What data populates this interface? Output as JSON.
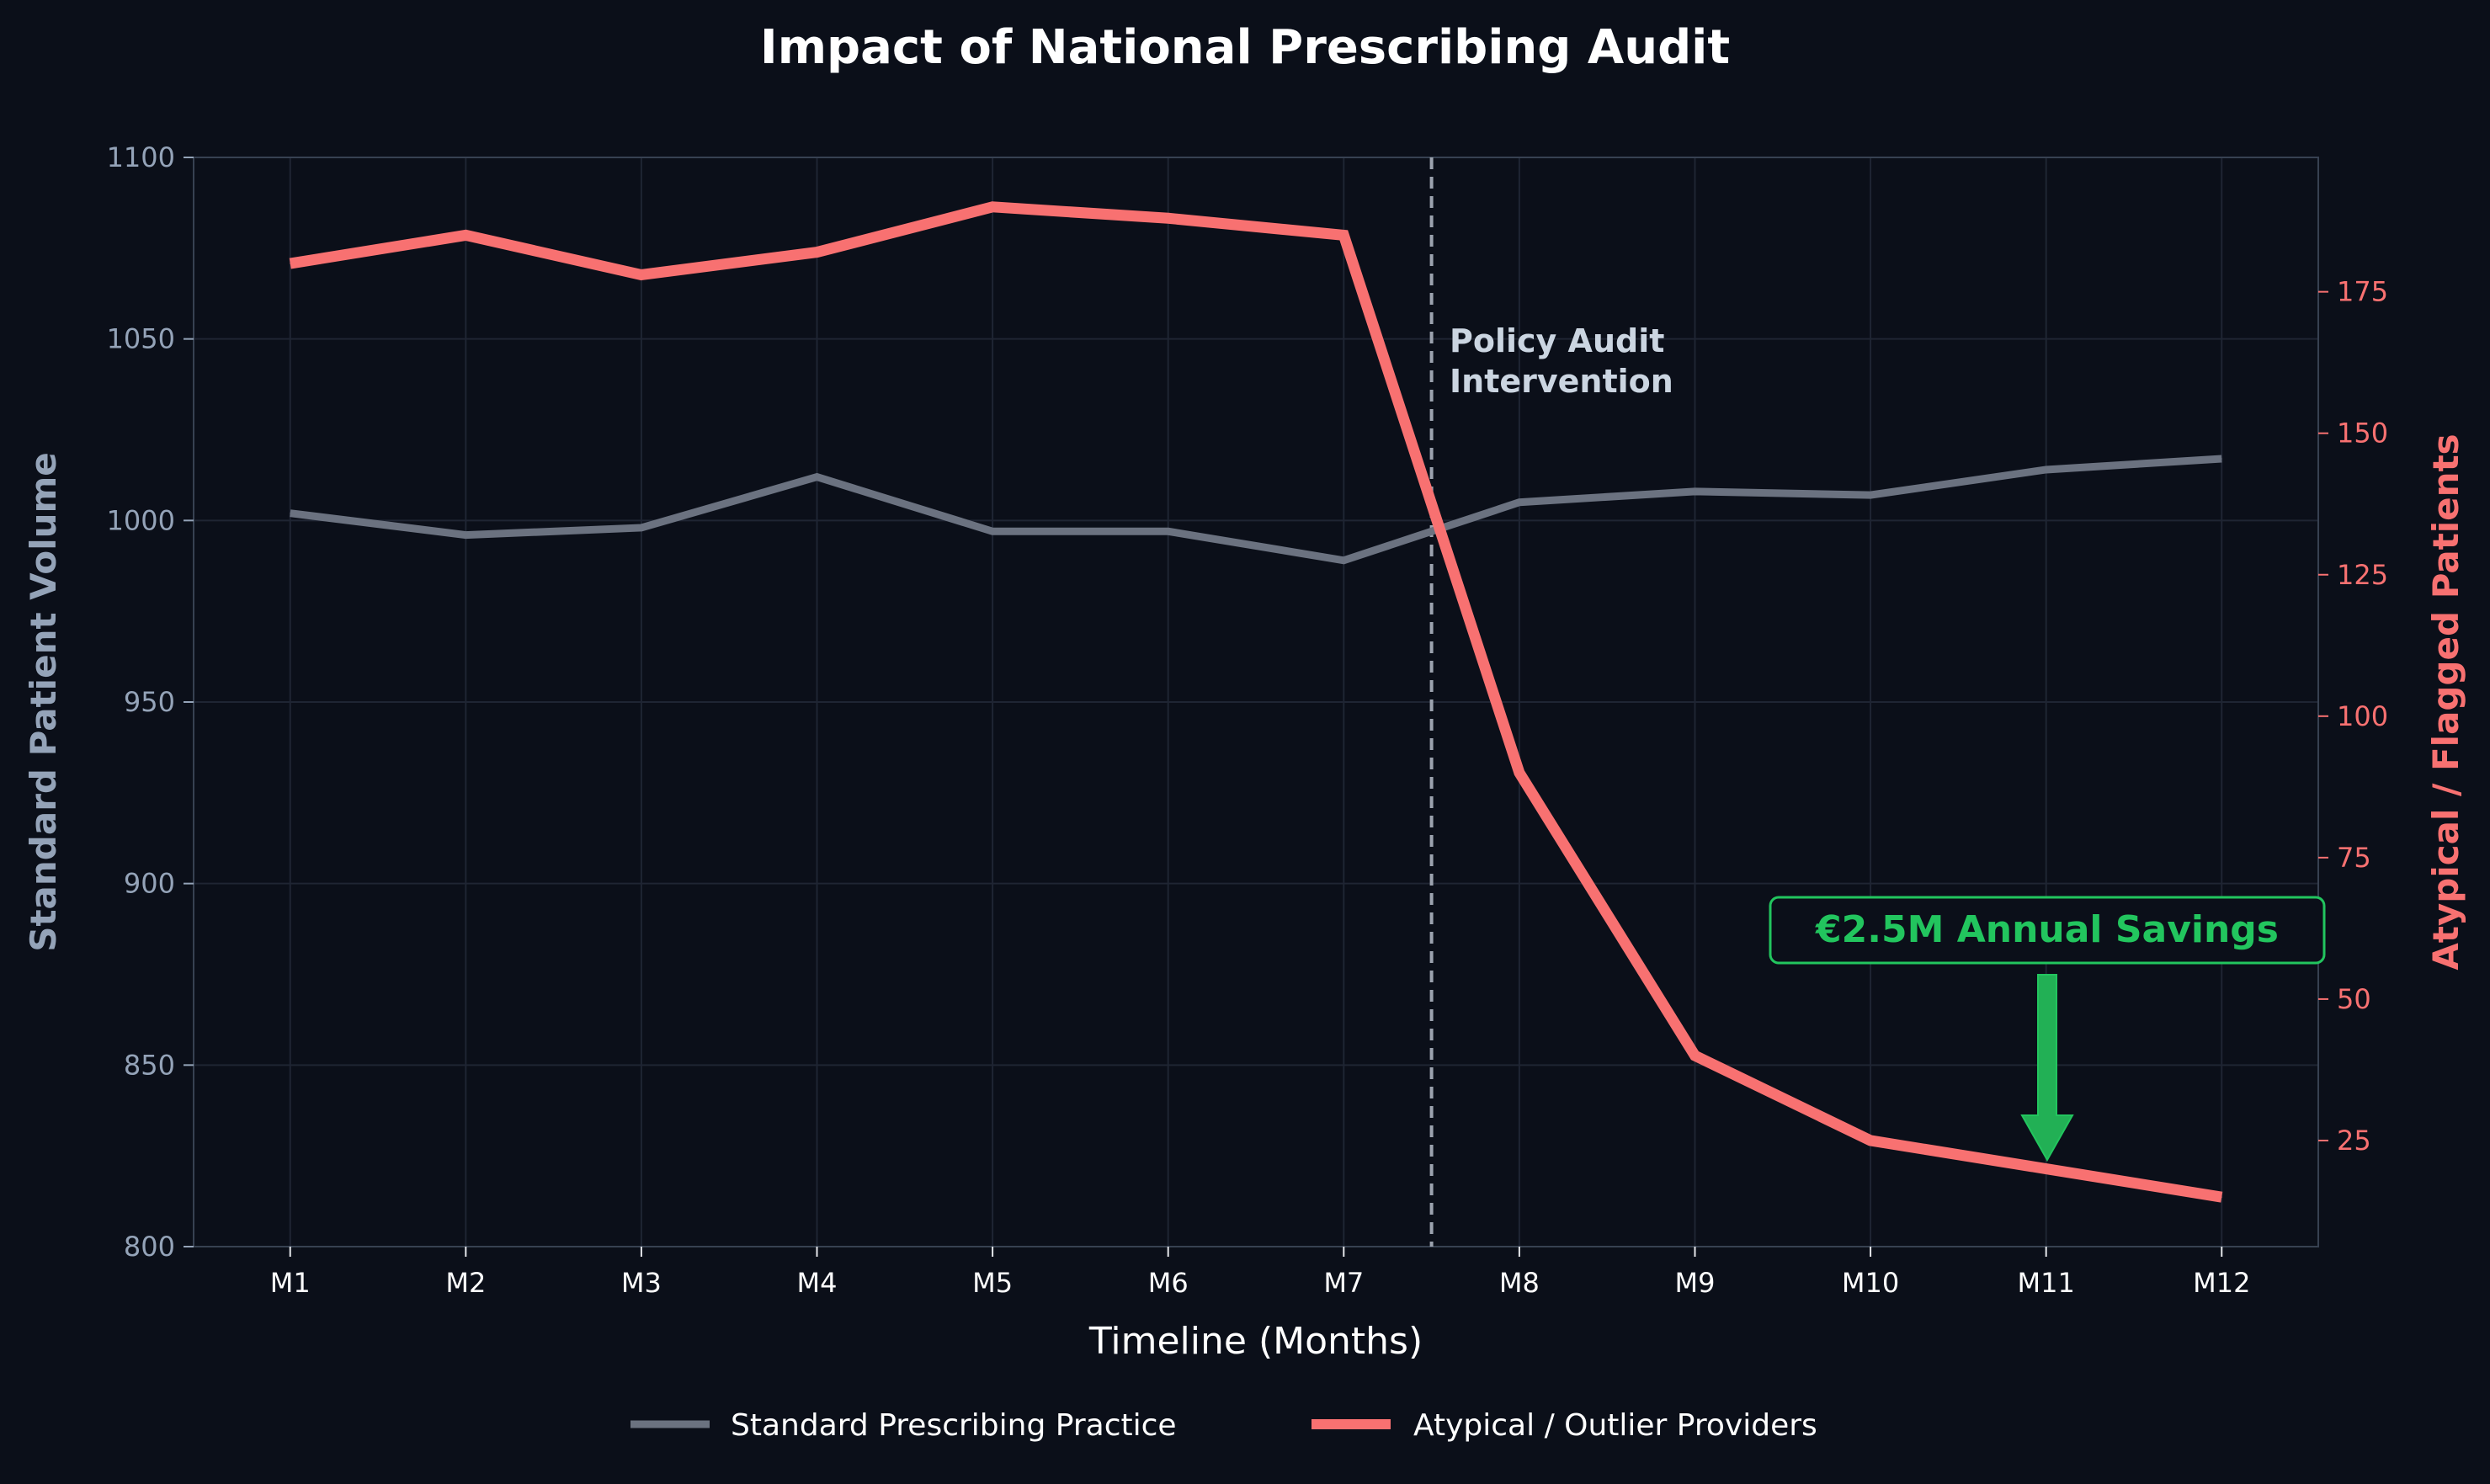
{
  "chart_data": {
    "type": "line",
    "title": "Impact of National Prescribing Audit",
    "xlabel": "Timeline (Months)",
    "ylabel_left": "Standard Patient Volume",
    "ylabel_right": "Atypical / Flagged Patients",
    "categories": [
      "M1",
      "M2",
      "M3",
      "M4",
      "M5",
      "M6",
      "M7",
      "M8",
      "M9",
      "M10",
      "M11",
      "M12"
    ],
    "ylim_left": [
      800,
      1100
    ],
    "yticks_left": [
      800,
      850,
      900,
      950,
      1000,
      1050,
      1100
    ],
    "ylim_right": [
      6.25,
      198.75
    ],
    "yticks_right": [
      25,
      50,
      75,
      100,
      125,
      150,
      175
    ],
    "grid": true,
    "legend_placement": "bottom-center",
    "series": [
      {
        "name": "Standard Prescribing Practice",
        "axis": "left",
        "color": "#6b7280",
        "values": [
          1002,
          996,
          998,
          1012,
          997,
          997,
          989,
          1005,
          1008,
          1007,
          1014,
          1017
        ]
      },
      {
        "name": "Atypical / Outlier Providers",
        "axis": "right",
        "color": "#f87171",
        "values": [
          180,
          185,
          178,
          182,
          190,
          188,
          185,
          90,
          40,
          25,
          20,
          15
        ]
      }
    ],
    "vline": {
      "x_between": [
        "M7",
        "M8"
      ],
      "label_line1": "Policy Audit",
      "label_line2": "Intervention",
      "color": "#9ca3af"
    },
    "annotation": {
      "text": "€2.5M Annual Savings",
      "points_to": "M11",
      "color": "#22c55e"
    }
  },
  "colors": {
    "background": "#0b0f19",
    "left_axis": "#94a3b8",
    "right_axis": "#f87171",
    "text": "#ffffff"
  }
}
